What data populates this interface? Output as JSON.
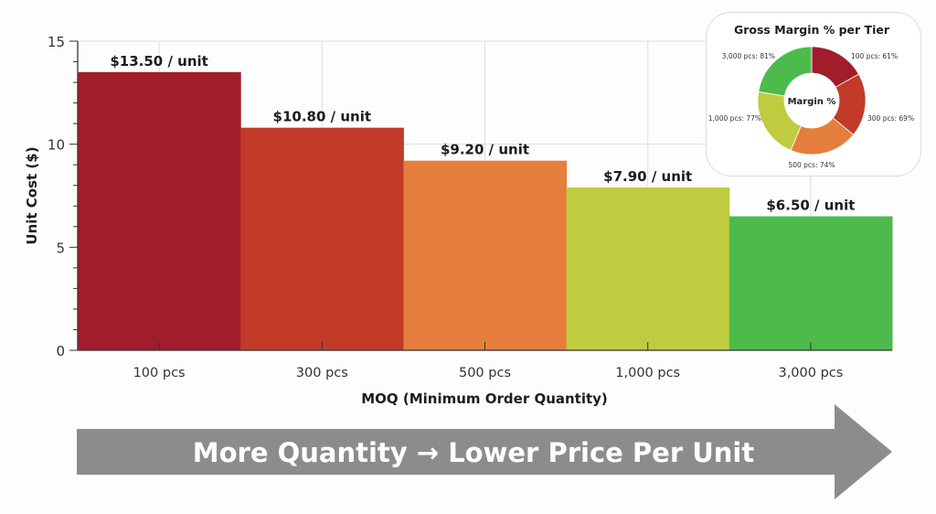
{
  "chart_data": [
    {
      "type": "bar",
      "title": "",
      "xlabel": "MOQ (Minimum Order Quantity)",
      "ylabel": "Unit Cost ($)",
      "ylim": [
        0,
        15
      ],
      "yticks": [
        0,
        5,
        10,
        15
      ],
      "grid": true,
      "categories": [
        "100 pcs",
        "300 pcs",
        "500 pcs",
        "1,000 pcs",
        "3,000 pcs"
      ],
      "values": [
        13.5,
        10.8,
        9.2,
        7.9,
        6.5
      ],
      "data_labels": [
        "$13.50 / unit",
        "$10.80 / unit",
        "$9.20 / unit",
        "$7.90 / unit",
        "$6.50 / unit"
      ],
      "colors": [
        "#a11d2c",
        "#c23a28",
        "#e67e3d",
        "#bfcc3f",
        "#4cbb4c"
      ]
    },
    {
      "type": "pie",
      "subtype": "donut",
      "title": "Gross Margin % per Tier",
      "center_label": "Margin %",
      "categories": [
        "100 pcs",
        "300 pcs",
        "500 pcs",
        "1,000 pcs",
        "3,000 pcs"
      ],
      "values": [
        61,
        69,
        74,
        77,
        81
      ],
      "slice_labels": [
        "100 pcs: 61%",
        "300 pcs: 69%",
        "500 pcs: 74%",
        "1,000 pcs: 77%",
        "3,000 pcs: 81%"
      ],
      "colors": [
        "#a11d2c",
        "#c23a28",
        "#e67e3d",
        "#bfcc3f",
        "#4cbb4c"
      ]
    }
  ],
  "arrow": {
    "text": "More Quantity → Lower Price Per Unit",
    "color": "#8c8c8c"
  }
}
